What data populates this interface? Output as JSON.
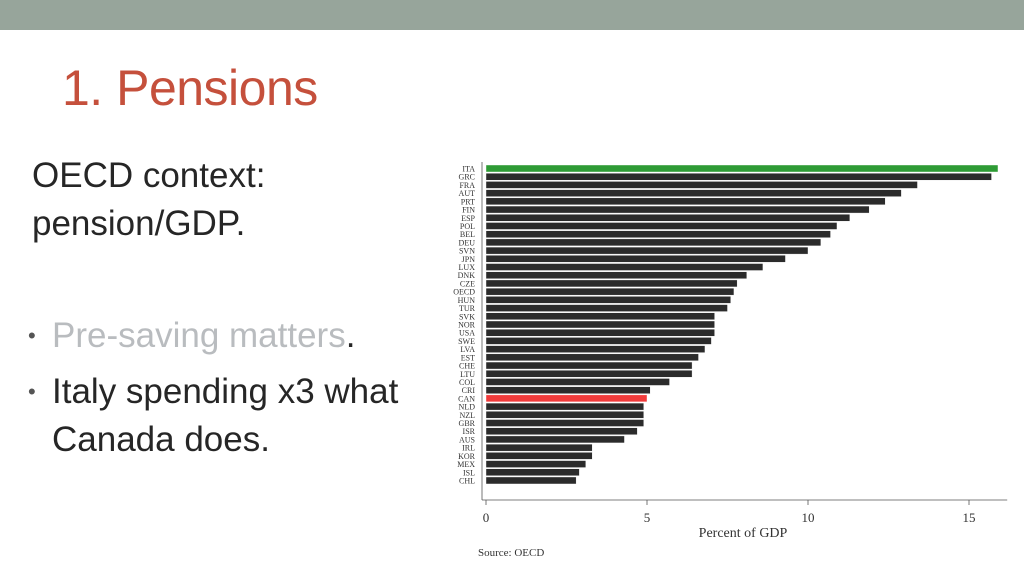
{
  "slide": {
    "title": "1. Pensions",
    "context": "OECD context: pension/GDP.",
    "bullet1_text": "Pre-saving matters",
    "bullet1_period": ".",
    "bullet2_text": "Italy spending x3 what Canada does.",
    "bullet_marker": "•"
  },
  "colors": {
    "topbar": "#97a59b",
    "title": "#c5503c",
    "bar_default": "#2b2b2b",
    "bar_italy": "#2e9b35",
    "bar_canada": "#f03a3a"
  },
  "chart_data": {
    "type": "bar",
    "orientation": "horizontal",
    "categories": [
      "ITA",
      "GRC",
      "FRA",
      "AUT",
      "PRT",
      "FIN",
      "ESP",
      "POL",
      "BEL",
      "DEU",
      "SVN",
      "JPN",
      "LUX",
      "DNK",
      "CZE",
      "OECD",
      "HUN",
      "TUR",
      "SVK",
      "NOR",
      "USA",
      "SWE",
      "LVA",
      "EST",
      "CHE",
      "LTU",
      "COL",
      "CRI",
      "CAN",
      "NLD",
      "NZL",
      "GBR",
      "ISR",
      "AUS",
      "IRL",
      "KOR",
      "MEX",
      "ISL",
      "CHL"
    ],
    "values": [
      15.9,
      15.7,
      13.4,
      12.9,
      12.4,
      11.9,
      11.3,
      10.9,
      10.7,
      10.4,
      10.0,
      9.3,
      8.6,
      8.1,
      7.8,
      7.7,
      7.6,
      7.5,
      7.1,
      7.1,
      7.1,
      7.0,
      6.8,
      6.6,
      6.4,
      6.4,
      5.7,
      5.1,
      5.0,
      4.9,
      4.9,
      4.9,
      4.7,
      4.3,
      3.3,
      3.3,
      3.1,
      2.9,
      2.8
    ],
    "highlight": {
      "ITA": "green",
      "CAN": "red"
    },
    "xlabel": "Percent of GDP",
    "ylabel": "",
    "xticks": [
      0,
      5,
      10,
      15
    ],
    "xlim": [
      0,
      16
    ],
    "grid": false,
    "source": "Source: OECD"
  }
}
